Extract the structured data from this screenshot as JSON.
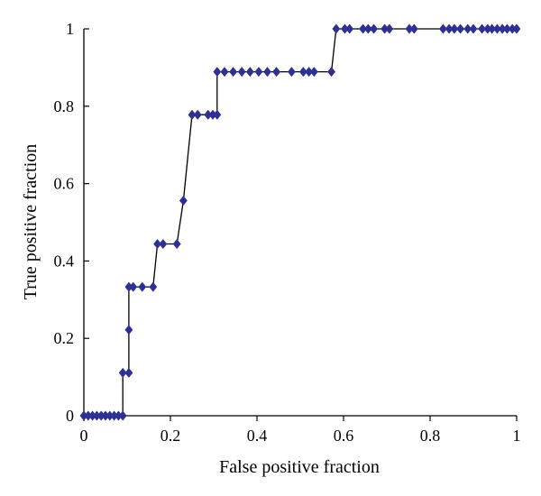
{
  "chart_data": {
    "type": "line",
    "title": "",
    "xlabel": "False positive fraction",
    "ylabel": "True positive fraction",
    "xlim": [
      0,
      1
    ],
    "ylim": [
      0,
      1
    ],
    "x_ticks": [
      0,
      0.2,
      0.4,
      0.6,
      0.8,
      1
    ],
    "x_tick_labels": [
      "0",
      "0.2",
      "0.4",
      "0.6",
      "0.8",
      "1"
    ],
    "y_ticks": [
      0,
      0.2,
      0.4,
      0.6,
      0.8,
      1
    ],
    "y_tick_labels": [
      "0",
      "0.2",
      "0.4",
      "0.6",
      "0.8",
      "1"
    ],
    "grid": false,
    "marker": "diamond",
    "series": [
      {
        "color": "#2e3192",
        "points": [
          [
            0.0,
            0.0
          ],
          [
            0.01,
            0.0
          ],
          [
            0.02,
            0.0
          ],
          [
            0.03,
            0.0
          ],
          [
            0.04,
            0.0
          ],
          [
            0.05,
            0.0
          ],
          [
            0.06,
            0.0
          ],
          [
            0.07,
            0.0
          ],
          [
            0.08,
            0.0
          ],
          [
            0.09,
            0.0
          ],
          [
            0.09,
            0.111
          ],
          [
            0.104,
            0.111
          ],
          [
            0.104,
            0.222
          ],
          [
            0.104,
            0.333
          ],
          [
            0.114,
            0.333
          ],
          [
            0.135,
            0.333
          ],
          [
            0.16,
            0.333
          ],
          [
            0.17,
            0.444
          ],
          [
            0.183,
            0.444
          ],
          [
            0.215,
            0.444
          ],
          [
            0.23,
            0.556
          ],
          [
            0.25,
            0.778
          ],
          [
            0.263,
            0.778
          ],
          [
            0.287,
            0.778
          ],
          [
            0.298,
            0.778
          ],
          [
            0.308,
            0.778
          ],
          [
            0.308,
            0.889
          ],
          [
            0.325,
            0.889
          ],
          [
            0.345,
            0.889
          ],
          [
            0.365,
            0.889
          ],
          [
            0.384,
            0.889
          ],
          [
            0.404,
            0.889
          ],
          [
            0.424,
            0.889
          ],
          [
            0.445,
            0.889
          ],
          [
            0.48,
            0.889
          ],
          [
            0.507,
            0.889
          ],
          [
            0.52,
            0.889
          ],
          [
            0.532,
            0.889
          ],
          [
            0.572,
            0.889
          ],
          [
            0.583,
            1.0
          ],
          [
            0.603,
            1.0
          ],
          [
            0.614,
            1.0
          ],
          [
            0.645,
            1.0
          ],
          [
            0.657,
            1.0
          ],
          [
            0.67,
            1.0
          ],
          [
            0.695,
            1.0
          ],
          [
            0.706,
            1.0
          ],
          [
            0.752,
            1.0
          ],
          [
            0.763,
            1.0
          ],
          [
            0.83,
            1.0
          ],
          [
            0.844,
            1.0
          ],
          [
            0.856,
            1.0
          ],
          [
            0.87,
            1.0
          ],
          [
            0.887,
            1.0
          ],
          [
            0.9,
            1.0
          ],
          [
            0.92,
            1.0
          ],
          [
            0.933,
            1.0
          ],
          [
            0.943,
            1.0
          ],
          [
            0.955,
            1.0
          ],
          [
            0.967,
            1.0
          ],
          [
            0.978,
            1.0
          ],
          [
            0.99,
            1.0
          ],
          [
            1.0,
            1.0
          ]
        ]
      }
    ]
  }
}
